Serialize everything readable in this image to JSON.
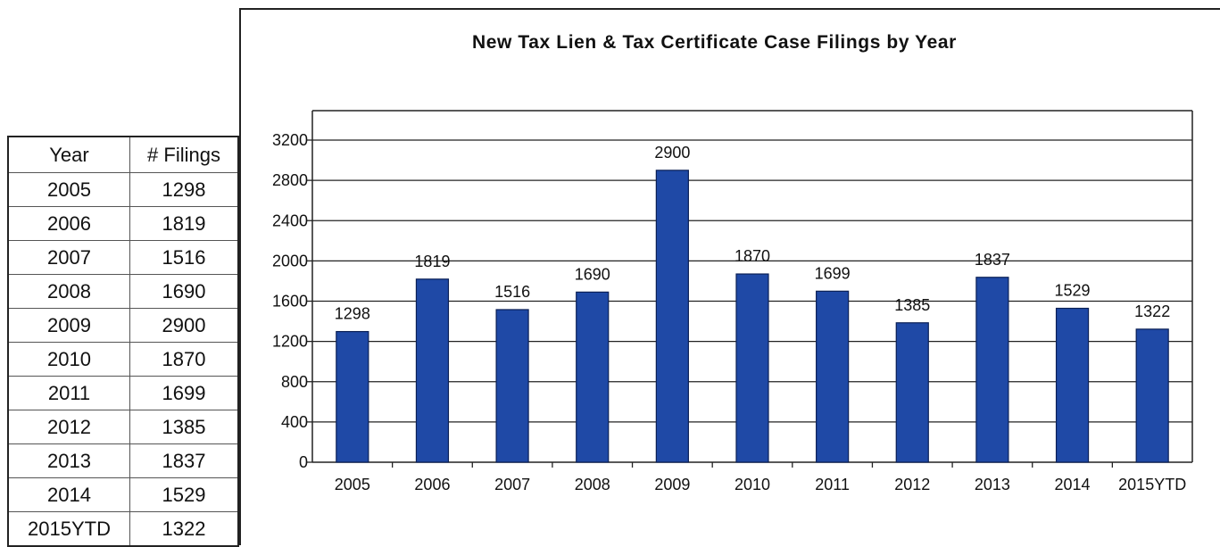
{
  "table": {
    "headers": [
      "Year",
      "# Filings"
    ],
    "rows": [
      [
        "2005",
        "1298"
      ],
      [
        "2006",
        "1819"
      ],
      [
        "2007",
        "1516"
      ],
      [
        "2008",
        "1690"
      ],
      [
        "2009",
        "2900"
      ],
      [
        "2010",
        "1870"
      ],
      [
        "2011",
        "1699"
      ],
      [
        "2012",
        "1385"
      ],
      [
        "2013",
        "1837"
      ],
      [
        "2014",
        "1529"
      ],
      [
        "2015YTD",
        "1322"
      ]
    ]
  },
  "chart_data": {
    "type": "bar",
    "title": "New Tax Lien & Tax Certificate Case Filings by Year",
    "xlabel": "",
    "ylabel": "",
    "categories": [
      "2005",
      "2006",
      "2007",
      "2008",
      "2009",
      "2010",
      "2011",
      "2012",
      "2013",
      "2014",
      "2015YTD"
    ],
    "values": [
      1298,
      1819,
      1516,
      1690,
      2900,
      1870,
      1699,
      1385,
      1837,
      1529,
      1322
    ],
    "data_labels": [
      "1298",
      "1819",
      "1516",
      "1690",
      "2900",
      "1870",
      "1699",
      "1385",
      "1837",
      "1529",
      "1322"
    ],
    "ylim": [
      0,
      3200
    ],
    "yticks": [
      0,
      400,
      800,
      1200,
      1600,
      2000,
      2400,
      2800,
      3200
    ],
    "grid": true,
    "bar_color": "#1f49a6",
    "bar_edge_color": "#0a1f55"
  }
}
